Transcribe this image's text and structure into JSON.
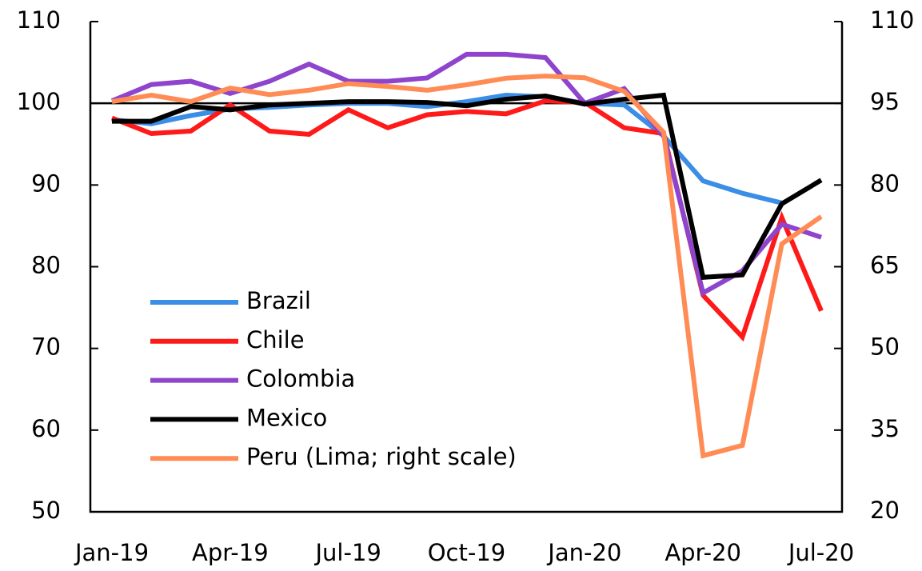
{
  "chart_data": {
    "type": "line",
    "categories": [
      "Jan-19",
      null,
      null,
      "Apr-19",
      null,
      null,
      "Jul-19",
      null,
      null,
      "Oct-19",
      null,
      null,
      "Jan-20",
      null,
      null,
      "Apr-20",
      null,
      null,
      "Jul-20"
    ],
    "ylim": [
      50,
      110
    ],
    "yticks": [
      50,
      60,
      70,
      80,
      90,
      100,
      110
    ],
    "y2lim": [
      20,
      110
    ],
    "y2ticks": [
      20,
      35,
      50,
      65,
      80,
      95,
      110
    ],
    "legend": "left",
    "series": [
      {
        "name": "Brazil",
        "color": "#3a8ee6",
        "values": [
          98.0,
          97.5,
          98.5,
          99.3,
          99.5,
          99.8,
          100.0,
          100.0,
          99.6,
          100.2,
          101.0,
          100.8,
          100.0,
          99.8,
          96.0,
          90.5,
          89.0,
          87.8,
          null
        ]
      },
      {
        "name": "Chile",
        "color": "#ff1a1a",
        "values": [
          98.2,
          96.3,
          96.6,
          99.8,
          96.6,
          96.2,
          99.2,
          97.0,
          98.6,
          99.0,
          98.7,
          100.3,
          100.1,
          97.0,
          96.3,
          76.5,
          71.4,
          86.0,
          74.6
        ]
      },
      {
        "name": "Colombia",
        "color": "#8e44cc",
        "values": [
          100.3,
          102.3,
          102.7,
          101.2,
          102.7,
          104.8,
          102.7,
          102.7,
          103.1,
          106.0,
          106.0,
          105.6,
          100.0,
          101.8,
          96.0,
          76.8,
          79.5,
          85.2,
          83.6
        ]
      },
      {
        "name": "Mexico",
        "color": "#000000",
        "values": [
          97.8,
          97.8,
          99.6,
          99.2,
          99.8,
          100.0,
          100.2,
          100.2,
          100.1,
          99.7,
          100.5,
          100.9,
          99.9,
          100.5,
          101.0,
          78.7,
          79.0,
          87.7,
          90.6
        ]
      },
      {
        "name": "Peru (Lima; right scale)",
        "color": "#ff8c55",
        "axis": "y2",
        "values": [
          95.3,
          96.5,
          95.3,
          97.8,
          96.6,
          97.4,
          98.6,
          98.1,
          97.4,
          98.4,
          99.6,
          100.0,
          99.7,
          97.2,
          89.7,
          30.3,
          32.2,
          69.2,
          74.2
        ]
      }
    ]
  }
}
